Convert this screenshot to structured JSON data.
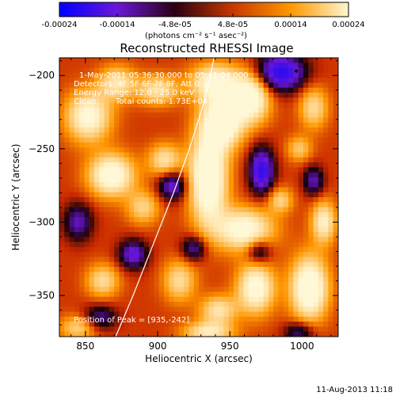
{
  "colors": {
    "background": "#ffffff",
    "text": "#000000",
    "overlay_text": "#ffffff",
    "limb_line": "#ffffff"
  },
  "chart_data": {
    "type": "heatmap",
    "title": "Reconstructed RHESSI Image",
    "xlabel": "Heliocentric X (arcsec)",
    "ylabel": "Heliocentric Y (arcsec)",
    "xlim": [
      832,
      1025
    ],
    "ylim": [
      -378,
      -188
    ],
    "xticks": [
      850,
      900,
      950,
      1000
    ],
    "yticks": [
      -200,
      -250,
      -300,
      -350
    ],
    "colorbar": {
      "min": -0.00024,
      "max": 0.00024,
      "ticks": [
        "-0.00024",
        "-0.00014",
        "-4.8e-05",
        "4.8e-05",
        "0.00014",
        "0.00024"
      ],
      "units": "(photons cm⁻² s⁻¹ asec⁻²)",
      "colormap": [
        "#0000ff",
        "#6a18d8",
        "#2a0012",
        "#c83800",
        "#ff9800",
        "#fff7d0"
      ]
    },
    "annotations": {
      "time_range": "1-May-2011 05:36:30.000 to 05:41:04.000",
      "detectors": "Detectors: 4F 5F 6F 7F 8F, Att 0",
      "energy": "Energy Range: 12.0 - 25.0 keV",
      "method": "Clean",
      "counts": "Total counts: 1.73E+04",
      "peak": "Position of Peak = [935,-242]"
    },
    "peak": {
      "x": 935,
      "y": -242
    },
    "marker": {
      "x": 996,
      "y": -197
    },
    "limb_arc": [
      [
        871,
        -378
      ],
      [
        883,
        -350
      ],
      [
        897,
        -315
      ],
      [
        911,
        -280
      ],
      [
        922,
        -250
      ],
      [
        931,
        -222
      ],
      [
        937,
        -198
      ],
      [
        939,
        -188
      ]
    ],
    "blobs": [
      {
        "x": 935,
        "y": -270,
        "amp": 1.0,
        "sx": 9,
        "sy": 22
      },
      {
        "x": 945,
        "y": -232,
        "amp": 0.9,
        "sx": 10,
        "sy": 12
      },
      {
        "x": 940,
        "y": -205,
        "amp": 0.75,
        "sx": 12,
        "sy": 9
      },
      {
        "x": 965,
        "y": -215,
        "amp": 0.85,
        "sx": 9,
        "sy": 12
      },
      {
        "x": 868,
        "y": -268,
        "amp": 0.85,
        "sx": 11,
        "sy": 10
      },
      {
        "x": 852,
        "y": -228,
        "amp": 0.75,
        "sx": 11,
        "sy": 12
      },
      {
        "x": 872,
        "y": -205,
        "amp": 0.55,
        "sx": 9,
        "sy": 8
      },
      {
        "x": 905,
        "y": -258,
        "amp": 0.55,
        "sx": 8,
        "sy": 8
      },
      {
        "x": 900,
        "y": -210,
        "amp": 0.55,
        "sx": 10,
        "sy": 7
      },
      {
        "x": 960,
        "y": -305,
        "amp": 0.8,
        "sx": 14,
        "sy": 10
      },
      {
        "x": 968,
        "y": -345,
        "amp": 0.8,
        "sx": 9,
        "sy": 12
      },
      {
        "x": 1005,
        "y": -345,
        "amp": 0.95,
        "sx": 9,
        "sy": 15
      },
      {
        "x": 1015,
        "y": -300,
        "amp": 0.65,
        "sx": 6,
        "sy": 10
      },
      {
        "x": 998,
        "y": -250,
        "amp": 0.4,
        "sx": 6,
        "sy": 6
      },
      {
        "x": 1008,
        "y": -222,
        "amp": 0.5,
        "sx": 7,
        "sy": 10
      },
      {
        "x": 915,
        "y": -340,
        "amp": 0.5,
        "sx": 8,
        "sy": 10
      },
      {
        "x": 942,
        "y": -360,
        "amp": 0.55,
        "sx": 9,
        "sy": 7
      },
      {
        "x": 862,
        "y": -340,
        "amp": 0.5,
        "sx": 8,
        "sy": 8
      },
      {
        "x": 845,
        "y": -372,
        "amp": 0.45,
        "sx": 9,
        "sy": 6
      },
      {
        "x": 935,
        "y": -375,
        "amp": 0.6,
        "sx": 12,
        "sy": 5
      },
      {
        "x": 890,
        "y": -290,
        "amp": 0.45,
        "sx": 8,
        "sy": 8
      },
      {
        "x": 985,
        "y": -285,
        "amp": 0.45,
        "sx": 6,
        "sy": 6
      },
      {
        "x": 985,
        "y": -198,
        "amp": -0.85,
        "sx": 12,
        "sy": 9
      },
      {
        "x": 972,
        "y": -265,
        "amp": -0.8,
        "sx": 6,
        "sy": 11
      },
      {
        "x": 910,
        "y": -275,
        "amp": -0.6,
        "sx": 7,
        "sy": 7
      },
      {
        "x": 883,
        "y": -322,
        "amp": -0.6,
        "sx": 7,
        "sy": 7
      },
      {
        "x": 925,
        "y": -318,
        "amp": -0.5,
        "sx": 6,
        "sy": 6
      },
      {
        "x": 970,
        "y": -320,
        "amp": -0.5,
        "sx": 6,
        "sy": 6
      },
      {
        "x": 1008,
        "y": -272,
        "amp": -0.5,
        "sx": 5,
        "sy": 7
      },
      {
        "x": 845,
        "y": -300,
        "amp": -0.5,
        "sx": 7,
        "sy": 9
      },
      {
        "x": 860,
        "y": -365,
        "amp": -0.45,
        "sx": 8,
        "sy": 6
      },
      {
        "x": 998,
        "y": -375,
        "amp": -0.45,
        "sx": 7,
        "sy": 5
      }
    ]
  },
  "footer": {
    "timestamp": "11-Aug-2013 11:18"
  }
}
